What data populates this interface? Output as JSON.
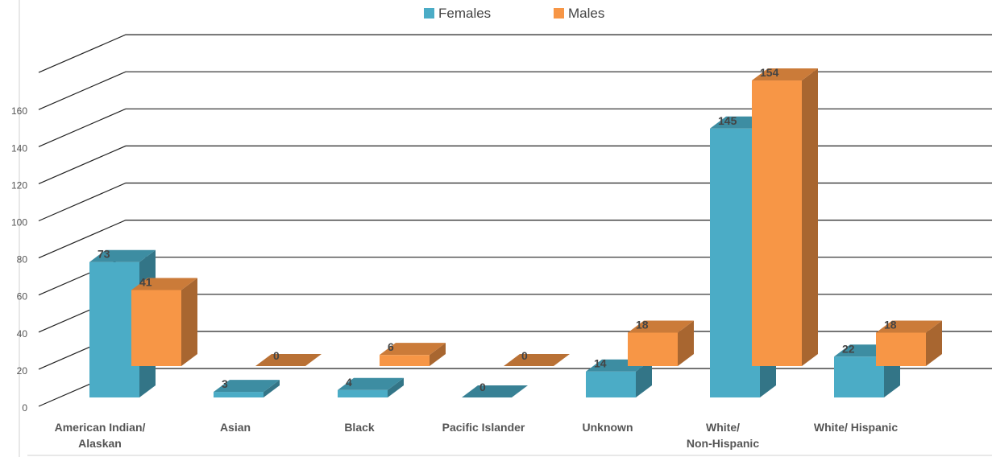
{
  "chart_data": {
    "type": "bar",
    "style": "3d-clustered-column",
    "categories": [
      [
        "American Indian/",
        "Alaskan"
      ],
      [
        "Asian"
      ],
      [
        "Black"
      ],
      [
        "Pacific Islander"
      ],
      [
        "Unknown"
      ],
      [
        "White/",
        "Non-Hispanic"
      ],
      [
        "White/ Hispanic"
      ]
    ],
    "series": [
      {
        "name": "Females",
        "values": [
          73,
          3,
          4,
          0,
          14,
          145,
          22
        ],
        "color": "#4BACC6"
      },
      {
        "name": "Males",
        "values": [
          41,
          0,
          6,
          0,
          18,
          154,
          18
        ],
        "color": "#F79646"
      }
    ],
    "yticks": [
      "0",
      "20",
      "40",
      "60",
      "80",
      "100",
      "120",
      "140",
      "160"
    ],
    "ylim": [
      0,
      160
    ],
    "grid": true,
    "legend_position": "top-center",
    "title": "",
    "xlabel": "",
    "ylabel": ""
  }
}
